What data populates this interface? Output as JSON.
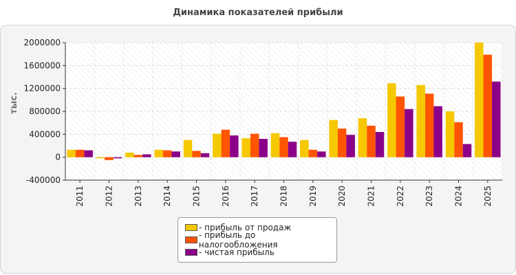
{
  "chart_data": {
    "type": "bar",
    "title": "Динамика показателей прибыли",
    "ylabel": "тыс.",
    "xlabel": "",
    "ylim": [
      -400000,
      2000000
    ],
    "yticks": [
      "2000000",
      "1600000",
      "1200000",
      "800000",
      "400000",
      "0",
      "-400000"
    ],
    "ytick_values": [
      2000000,
      1600000,
      1200000,
      800000,
      400000,
      0,
      -400000
    ],
    "grid": true,
    "legend_position": "bottom-center",
    "categories": [
      "2011",
      "2012",
      "2013",
      "2014",
      "2015",
      "2016",
      "2017",
      "2018",
      "2019",
      "2020",
      "2021",
      "2022",
      "2023",
      "2024",
      "2025"
    ],
    "series": [
      {
        "name": "- прибыль от продаж",
        "color": "#f5c800",
        "values": [
          130000,
          -20000,
          80000,
          130000,
          300000,
          410000,
          330000,
          420000,
          300000,
          650000,
          680000,
          1290000,
          1260000,
          800000,
          2000000
        ]
      },
      {
        "name": "- прибыль до налогообложения",
        "color": "#ff5500",
        "values": [
          130000,
          -50000,
          40000,
          120000,
          110000,
          480000,
          410000,
          350000,
          130000,
          500000,
          550000,
          1060000,
          1110000,
          610000,
          1790000
        ]
      },
      {
        "name": "- чистая прибыль",
        "color": "#8b0088",
        "values": [
          120000,
          -20000,
          50000,
          100000,
          70000,
          380000,
          320000,
          270000,
          100000,
          390000,
          440000,
          840000,
          890000,
          230000,
          1320000
        ]
      }
    ]
  }
}
